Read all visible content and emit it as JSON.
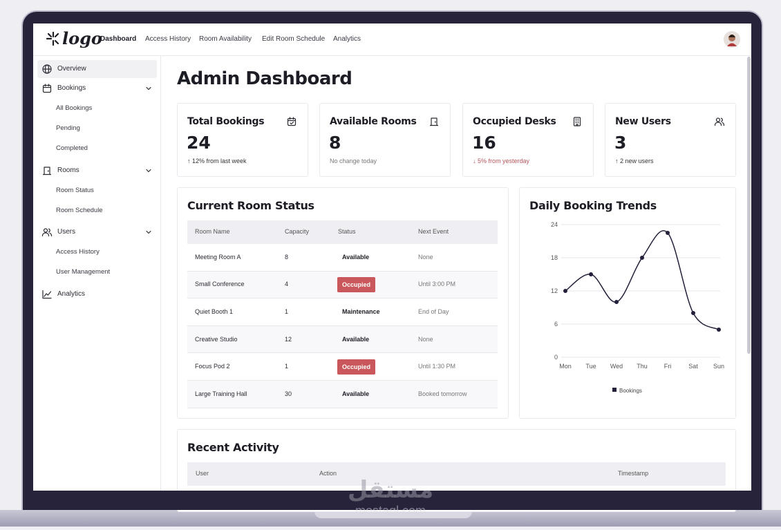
{
  "header": {
    "logo": "logo",
    "nav": [
      "Dashboard",
      "Access History",
      "Room Availability",
      "Edit Room Schedule",
      "Analytics"
    ]
  },
  "sidebar": [
    {
      "label": "Overview"
    },
    {
      "label": "Bookings",
      "children": [
        "All Bookings",
        "Pending",
        "Completed"
      ]
    },
    {
      "label": "Rooms",
      "children": [
        "Room Status",
        "Room Schedule"
      ]
    },
    {
      "label": "Users",
      "children": [
        "Access History",
        "User Management"
      ]
    },
    {
      "label": "Analytics"
    }
  ],
  "page_title": "Admin Dashboard",
  "stats": [
    {
      "title": "Total Bookings",
      "value": "24",
      "note": "↑ 12% from last week",
      "note_color": "#333333"
    },
    {
      "title": "Available Rooms",
      "value": "8",
      "note": "No change today",
      "note_color": "#777777"
    },
    {
      "title": "Occupied Desks",
      "value": "16",
      "note": "↓ 5% from yesterday",
      "note_color": "#b5545a"
    },
    {
      "title": "New Users",
      "value": "3",
      "note": "↑ 2 new users",
      "note_color": "#333333"
    }
  ],
  "room_status": {
    "title": "Current Room Status",
    "columns": [
      "Room Name",
      "Capacity",
      "Status",
      "Next Event"
    ],
    "rows": [
      {
        "cells": [
          "Meeting Room A",
          "8",
          "Available",
          "None"
        ]
      },
      {
        "cells": [
          "Small Conference",
          "4",
          "Occupied",
          "Until 3:00 PM"
        ],
        "status_color": "#c9575b"
      },
      {
        "cells": [
          "Quiet Booth 1",
          "1",
          "Maintenance",
          "End of Day"
        ]
      },
      {
        "cells": [
          "Creative Studio",
          "12",
          "Available",
          "None"
        ]
      },
      {
        "cells": [
          "Focus Pod 2",
          "1",
          "Occupied",
          "Until 1:30 PM"
        ],
        "status_color": "#c9575b"
      },
      {
        "cells": [
          "Large Training Hall",
          "30",
          "Available",
          "Booked tomorrow"
        ]
      }
    ]
  },
  "chart_data": {
    "type": "line",
    "title": "Daily Booking Trends",
    "categories": [
      "Mon",
      "Tue",
      "Wed",
      "Thu",
      "Fri",
      "Sat",
      "Sun"
    ],
    "series": [
      {
        "name": "Bookings",
        "color": "#22203a",
        "values": [
          12,
          15,
          10,
          18,
          22.5,
          8,
          5
        ]
      }
    ],
    "ylim": [
      0,
      24
    ],
    "yticks": [
      0,
      6,
      12,
      18,
      24
    ],
    "grid": true
  },
  "recent_activity": {
    "title": "Recent Activity",
    "columns": [
      "User",
      "Action",
      "Timestamp"
    ]
  },
  "watermark": {
    "arabic": "مستقل",
    "latin": "mostaql.com"
  }
}
